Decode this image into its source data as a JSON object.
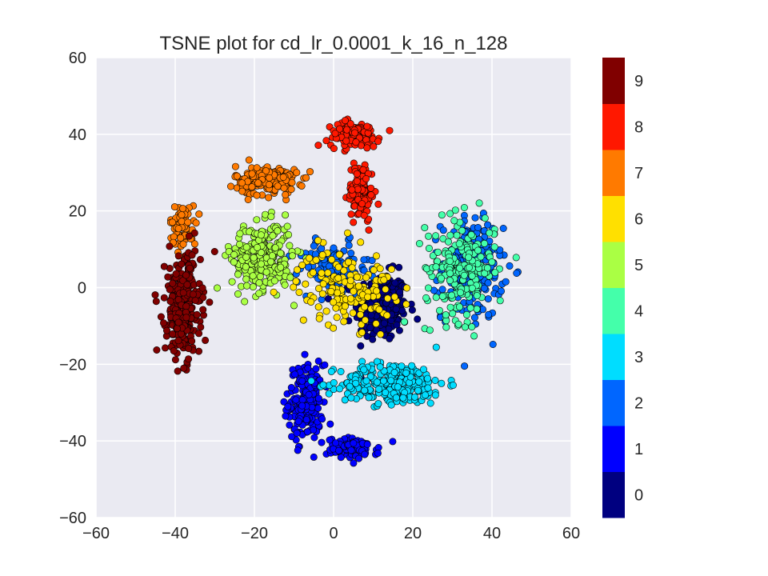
{
  "chart_data": {
    "type": "scatter",
    "title": "TSNE plot for cd_lr_0.0001_k_16_n_128",
    "xlabel": "",
    "ylabel": "",
    "xlim": [
      -60,
      60
    ],
    "ylim": [
      -60,
      60
    ],
    "x_ticks": [
      "−60",
      "−40",
      "−20",
      "0",
      "20",
      "40",
      "60"
    ],
    "y_ticks": [
      "60",
      "40",
      "20",
      "0",
      "−20",
      "−40",
      "−60"
    ],
    "grid": true,
    "plot_background": "#eaeaf2",
    "colormap": "jet",
    "colorbar": {
      "labels": [
        "0",
        "1",
        "2",
        "3",
        "4",
        "5",
        "6",
        "7",
        "8",
        "9"
      ],
      "colors": [
        "#000080",
        "#0000ff",
        "#0066ff",
        "#00ddff",
        "#44ffaa",
        "#aaff44",
        "#ffe000",
        "#ff7a00",
        "#ff1800",
        "#800000"
      ]
    },
    "clusters": [
      {
        "label": "0",
        "color": "#000080",
        "center": [
          12,
          -5
        ],
        "spread": [
          6,
          8
        ],
        "count": 260
      },
      {
        "label": "1",
        "color": "#0000ff",
        "center": [
          -7,
          -30
        ],
        "spread": [
          4,
          9
        ],
        "count": 200
      },
      {
        "label": "1",
        "color": "#0000ff",
        "center": [
          5,
          -42
        ],
        "spread": [
          6,
          2.5
        ],
        "count": 90
      },
      {
        "label": "2",
        "color": "#0066ff",
        "center": [
          35,
          5
        ],
        "spread": [
          7,
          12
        ],
        "count": 220
      },
      {
        "label": "2",
        "color": "#0066ff",
        "center": [
          0,
          5
        ],
        "spread": [
          8,
          6
        ],
        "count": 120
      },
      {
        "label": "3",
        "color": "#00ddff",
        "center": [
          15,
          -25
        ],
        "spread": [
          12,
          5
        ],
        "count": 280
      },
      {
        "label": "4",
        "color": "#44ffaa",
        "center": [
          32,
          5
        ],
        "spread": [
          8,
          12
        ],
        "count": 200
      },
      {
        "label": "5",
        "color": "#aaff44",
        "center": [
          -18,
          8
        ],
        "spread": [
          7,
          8
        ],
        "count": 260
      },
      {
        "label": "6",
        "color": "#ffe000",
        "center": [
          3,
          0
        ],
        "spread": [
          11,
          9
        ],
        "count": 160
      },
      {
        "label": "7",
        "color": "#ff7a00",
        "center": [
          -17,
          28
        ],
        "spread": [
          7,
          3.5
        ],
        "count": 190
      },
      {
        "label": "7",
        "color": "#ff7a00",
        "center": [
          -38,
          16
        ],
        "spread": [
          3,
          5
        ],
        "count": 70
      },
      {
        "label": "8",
        "color": "#ff1800",
        "center": [
          5,
          40
        ],
        "spread": [
          6,
          3
        ],
        "count": 120
      },
      {
        "label": "8",
        "color": "#ff1800",
        "center": [
          7,
          25
        ],
        "spread": [
          3,
          7
        ],
        "count": 110
      },
      {
        "label": "9",
        "color": "#800000",
        "center": [
          -38,
          -5
        ],
        "spread": [
          4,
          12
        ],
        "count": 300
      }
    ]
  }
}
